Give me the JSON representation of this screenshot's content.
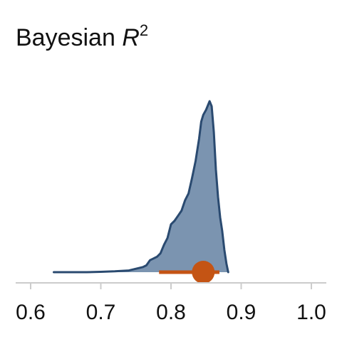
{
  "chart_data": {
    "type": "area",
    "title": {
      "text": "Bayesian ",
      "symbol": "R",
      "superscript": "2"
    },
    "xlabel": "",
    "ylabel": "",
    "xlim": [
      0.6,
      1.0
    ],
    "xticks": [
      "0.6",
      "0.7",
      "0.8",
      "0.9",
      "1.0"
    ],
    "grid": false,
    "legend": "none",
    "density": {
      "x": [
        0.633,
        0.65,
        0.68,
        0.7,
        0.72,
        0.74,
        0.75,
        0.76,
        0.765,
        0.77,
        0.775,
        0.78,
        0.785,
        0.79,
        0.795,
        0.8,
        0.805,
        0.81,
        0.815,
        0.82,
        0.825,
        0.83,
        0.835,
        0.84,
        0.843,
        0.846,
        0.85,
        0.855,
        0.858,
        0.861,
        0.864,
        0.867,
        0.87,
        0.873,
        0.876,
        0.879,
        0.8815
      ],
      "y": [
        0.0,
        0.0,
        0.0,
        0.002,
        0.005,
        0.01,
        0.02,
        0.03,
        0.04,
        0.07,
        0.08,
        0.09,
        0.11,
        0.16,
        0.2,
        0.28,
        0.3,
        0.33,
        0.36,
        0.42,
        0.46,
        0.55,
        0.65,
        0.78,
        0.88,
        0.92,
        0.95,
        1.0,
        0.97,
        0.82,
        0.6,
        0.44,
        0.32,
        0.24,
        0.13,
        0.05,
        0.0
      ]
    },
    "point_estimate": 0.846,
    "interval": [
      0.783,
      0.869
    ]
  },
  "colors": {
    "fill": "#7b94b0",
    "line": "#2a4a70",
    "point": "#c45414",
    "axis": "#cccccc",
    "text": "#111111"
  }
}
